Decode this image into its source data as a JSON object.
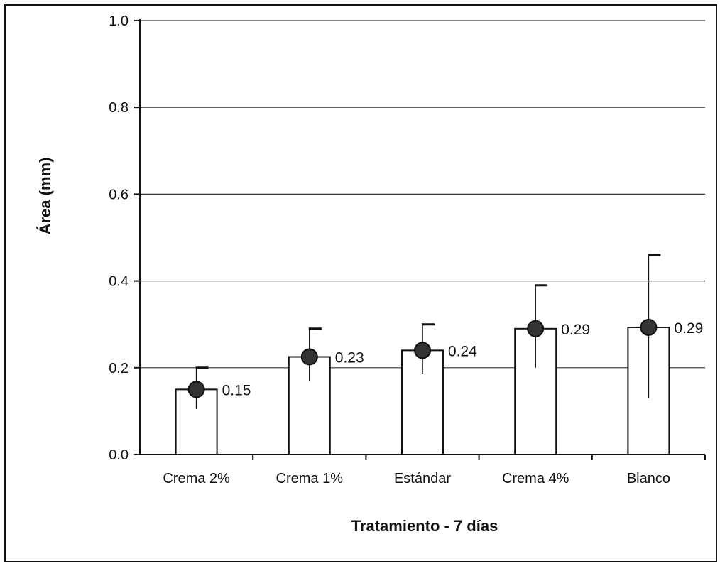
{
  "chart_data": {
    "type": "bar",
    "title": "",
    "xlabel": "Tratamiento - 7 días",
    "ylabel": "Área (mm)",
    "ylim": [
      0,
      1.0
    ],
    "yticks": [
      "0.0",
      "0.2",
      "0.4",
      "0.6",
      "0.8",
      "1.0"
    ],
    "ytick_values": [
      0,
      0.2,
      0.4,
      0.6,
      0.8,
      1.0
    ],
    "grid": true,
    "categories": [
      "Crema 2%",
      "Crema 1%",
      "Estándar",
      "Crema 4%",
      "Blanco"
    ],
    "values": [
      0.15,
      0.225,
      0.24,
      0.29,
      0.293
    ],
    "error_low": [
      0.105,
      0.17,
      0.185,
      0.2,
      0.13
    ],
    "error_high": [
      0.2,
      0.29,
      0.3,
      0.39,
      0.46
    ],
    "data_labels": [
      "0.15",
      "0.23",
      "0.24",
      "0.29",
      "0.29"
    ],
    "bar_color": "#ffffff",
    "marker_color": "#333333"
  }
}
